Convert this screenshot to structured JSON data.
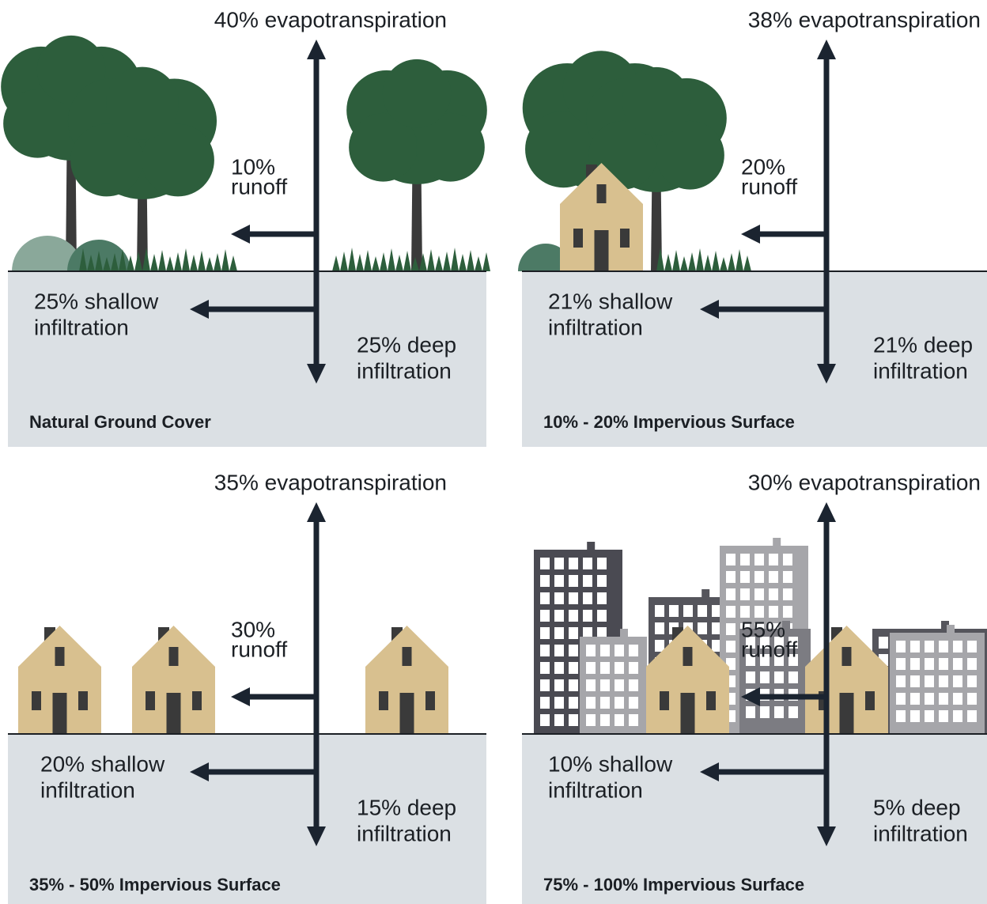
{
  "panels": [
    {
      "title": "Natural Ground Cover",
      "evapotranspiration": "40% evapotranspiration",
      "runoff": [
        "10%",
        "runoff"
      ],
      "shallow": [
        "25% shallow",
        "infiltration"
      ],
      "deep": [
        "25% deep",
        "infiltration"
      ]
    },
    {
      "title": "10% - 20% Impervious Surface",
      "evapotranspiration": "38% evapotranspiration",
      "runoff": [
        "20%",
        "runoff"
      ],
      "shallow": [
        "21% shallow",
        "infiltration"
      ],
      "deep": [
        "21% deep",
        "infiltration"
      ]
    },
    {
      "title": "35% - 50% Impervious Surface",
      "evapotranspiration": "35% evapotranspiration",
      "runoff": [
        "30%",
        "runoff"
      ],
      "shallow": [
        "20% shallow",
        "infiltration"
      ],
      "deep": [
        "15% deep",
        "infiltration"
      ]
    },
    {
      "title": "75% - 100% Impervious Surface",
      "evapotranspiration": "30% evapotranspiration",
      "runoff": [
        "55%",
        "runoff"
      ],
      "shallow": [
        "10% shallow",
        "infiltration"
      ],
      "deep": [
        "5% deep",
        "infiltration"
      ]
    }
  ]
}
